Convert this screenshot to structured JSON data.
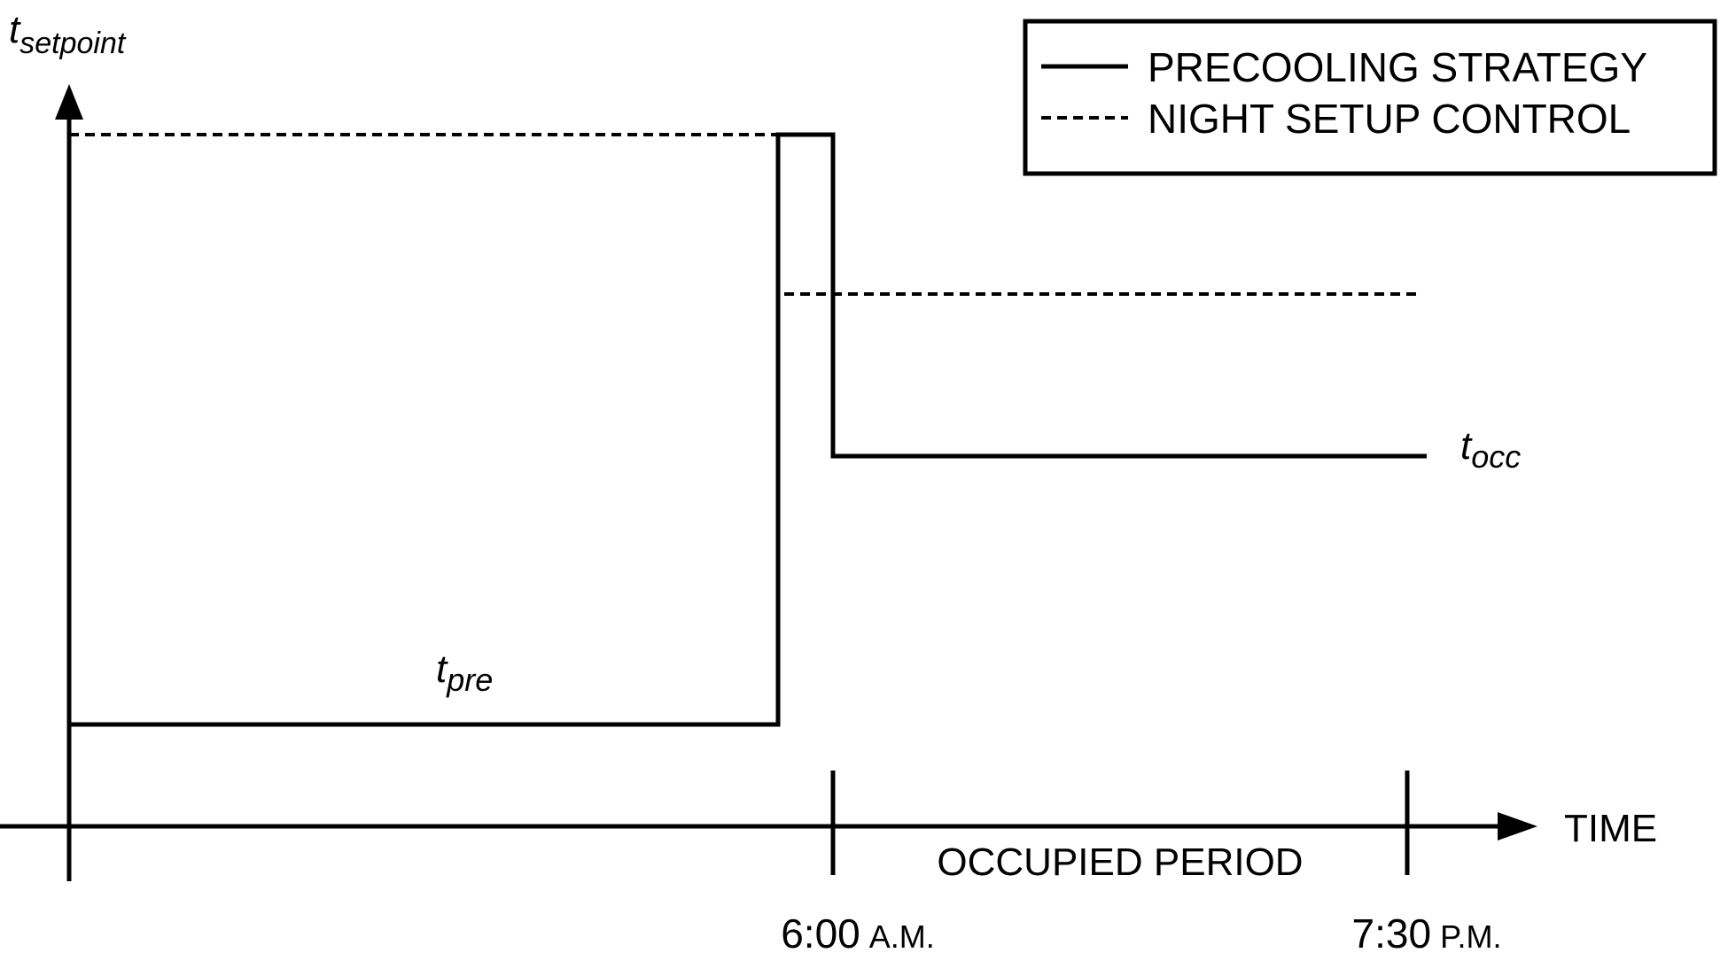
{
  "chart_data": {
    "type": "line",
    "y_axis_label": {
      "main": "t",
      "sub": "setpoint"
    },
    "x_axis_label": "TIME",
    "legend": {
      "placement": "top-right",
      "entries": [
        {
          "label": "PRECOOLING STRATEGY",
          "style": "solid"
        },
        {
          "label": "NIGHT SETUP CONTROL",
          "style": "dashed"
        }
      ]
    },
    "annotations": {
      "t_pre": {
        "main": "t",
        "sub": "pre"
      },
      "t_occ": {
        "main": "t",
        "sub": "occ"
      },
      "occupied_period": "OCCUPIED PERIOD"
    },
    "x_ticks": [
      {
        "time": "6:00",
        "ampm": "A.M."
      },
      {
        "time": "7:30",
        "ampm": "P.M."
      }
    ],
    "colors": {
      "line": "#000000",
      "background": "#ffffff"
    }
  }
}
